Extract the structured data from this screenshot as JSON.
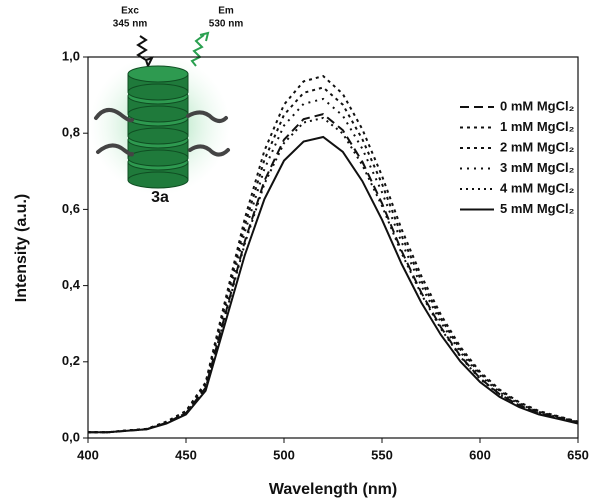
{
  "chart_data": {
    "type": "line",
    "xlabel": "Wavelength (nm)",
    "ylabel": "Intensity (a.u.)",
    "xlim": [
      400,
      650
    ],
    "ylim": [
      0,
      1.0
    ],
    "xticks": [
      400,
      450,
      500,
      550,
      600,
      650
    ],
    "yticks": [
      {
        "value": 0,
        "label": "0,0"
      },
      {
        "value": 0.2,
        "label": "0,2"
      },
      {
        "value": 0.4,
        "label": "0,4"
      },
      {
        "value": 0.6,
        "label": "0,6"
      },
      {
        "value": 0.8,
        "label": "0,8"
      },
      {
        "value": 1.0,
        "label": "1,0"
      }
    ],
    "legend": "upper right",
    "annotations": {
      "excitation": "Exc",
      "excitation_wavelength": "345 nm",
      "emission": "Em",
      "emission_wavelength": "530 nm",
      "compound": "3a"
    },
    "x": [
      400,
      410,
      420,
      430,
      440,
      450,
      460,
      470,
      480,
      490,
      500,
      510,
      520,
      530,
      540,
      550,
      560,
      570,
      580,
      590,
      600,
      610,
      620,
      630,
      640,
      650
    ],
    "series": [
      {
        "name": "0 mM MgCl₂",
        "color": "#111111",
        "dash": "9,5",
        "values": [
          0.015,
          0.015,
          0.019,
          0.023,
          0.04,
          0.065,
          0.132,
          0.324,
          0.516,
          0.675,
          0.783,
          0.837,
          0.85,
          0.808,
          0.725,
          0.616,
          0.491,
          0.382,
          0.291,
          0.215,
          0.157,
          0.115,
          0.086,
          0.065,
          0.053,
          0.04
        ]
      },
      {
        "name": "1 mM MgCl₂",
        "color": "#111111",
        "dash": "3,4",
        "values": [
          0.015,
          0.015,
          0.02,
          0.024,
          0.043,
          0.071,
          0.146,
          0.361,
          0.576,
          0.754,
          0.875,
          0.936,
          0.95,
          0.903,
          0.81,
          0.688,
          0.548,
          0.426,
          0.324,
          0.239,
          0.174,
          0.127,
          0.094,
          0.071,
          0.057,
          0.043
        ]
      },
      {
        "name": "2 mM MgCl₂",
        "color": "#111111",
        "dash": "3,4",
        "values": [
          0.015,
          0.015,
          0.02,
          0.024,
          0.042,
          0.069,
          0.142,
          0.35,
          0.558,
          0.73,
          0.848,
          0.906,
          0.92,
          0.875,
          0.784,
          0.667,
          0.531,
          0.413,
          0.314,
          0.232,
          0.169,
          0.124,
          0.092,
          0.069,
          0.056,
          0.042
        ]
      },
      {
        "name": "3 mM MgCl₂",
        "color": "#111111",
        "dash": "2,5",
        "values": [
          0.015,
          0.015,
          0.019,
          0.024,
          0.041,
          0.068,
          0.138,
          0.339,
          0.54,
          0.706,
          0.82,
          0.877,
          0.89,
          0.846,
          0.759,
          0.645,
          0.514,
          0.4,
          0.304,
          0.225,
          0.164,
          0.12,
          0.089,
          0.068,
          0.054,
          0.041
        ]
      },
      {
        "name": "4 mM MgCl₂",
        "color": "#111111",
        "dash": "2,4",
        "values": [
          0.015,
          0.015,
          0.019,
          0.023,
          0.04,
          0.065,
          0.13,
          0.32,
          0.51,
          0.667,
          0.774,
          0.828,
          0.84,
          0.799,
          0.716,
          0.609,
          0.485,
          0.378,
          0.287,
          0.213,
          0.155,
          0.114,
          0.085,
          0.065,
          0.052,
          0.04
        ]
      },
      {
        "name": "5 mM MgCl₂",
        "color": "#111111",
        "dash": "",
        "values": [
          0.015,
          0.015,
          0.019,
          0.023,
          0.038,
          0.062,
          0.124,
          0.302,
          0.48,
          0.627,
          0.728,
          0.778,
          0.79,
          0.751,
          0.674,
          0.573,
          0.457,
          0.356,
          0.271,
          0.201,
          0.147,
          0.108,
          0.081,
          0.062,
          0.05,
          0.038
        ]
      }
    ]
  }
}
